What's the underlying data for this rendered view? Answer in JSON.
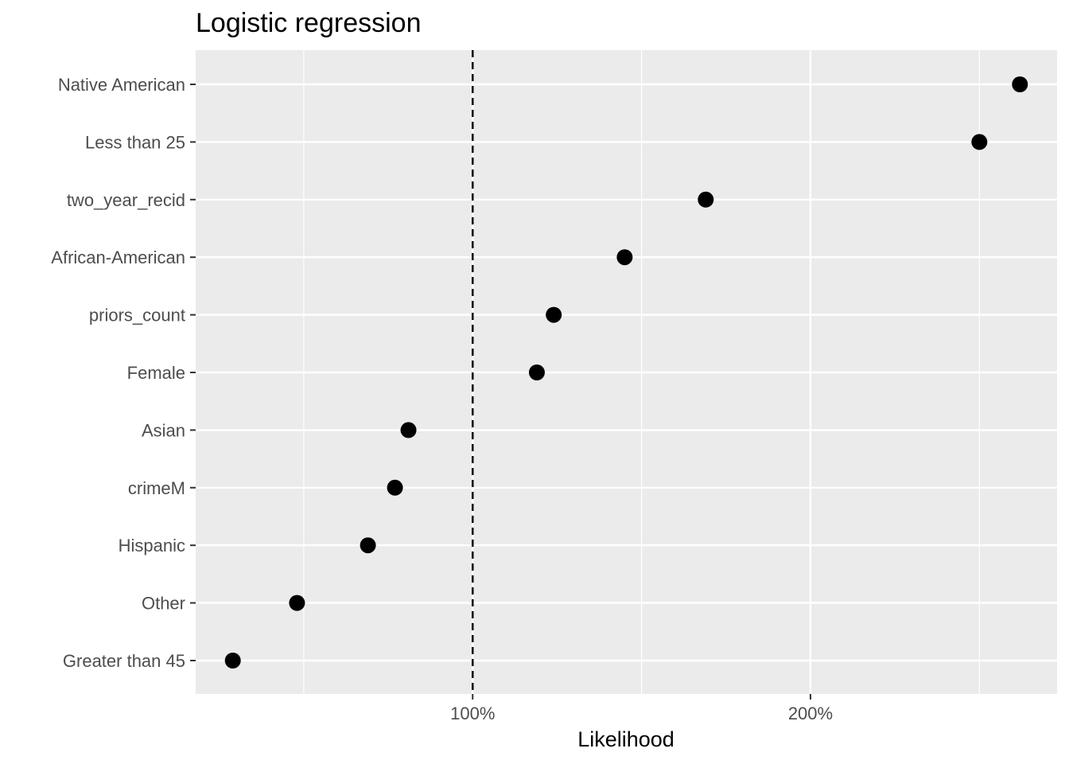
{
  "chart_data": {
    "type": "scatter",
    "title": "Logistic regression",
    "xlabel": "Likelihood",
    "ylabel": "",
    "xlim": [
      0.18,
      2.73
    ],
    "x_ticks": [
      {
        "value": 1.0,
        "label": "100%"
      },
      {
        "value": 2.0,
        "label": "200%"
      }
    ],
    "x_minor_ticks": [
      0.5,
      1.5,
      2.5
    ],
    "reference_line": {
      "x": 1.0,
      "style": "dashed"
    },
    "categories": [
      "Native American",
      "Less than 25",
      "two_year_recid",
      "African-American",
      "priors_count",
      "Female",
      "Asian",
      "crimeM",
      "Hispanic",
      "Other",
      "Greater than 45"
    ],
    "values": [
      2.62,
      2.5,
      1.69,
      1.45,
      1.24,
      1.19,
      0.81,
      0.77,
      0.69,
      0.48,
      0.29
    ],
    "grid": true,
    "panel_color": "#ebebeb",
    "point_color": "#000000"
  }
}
